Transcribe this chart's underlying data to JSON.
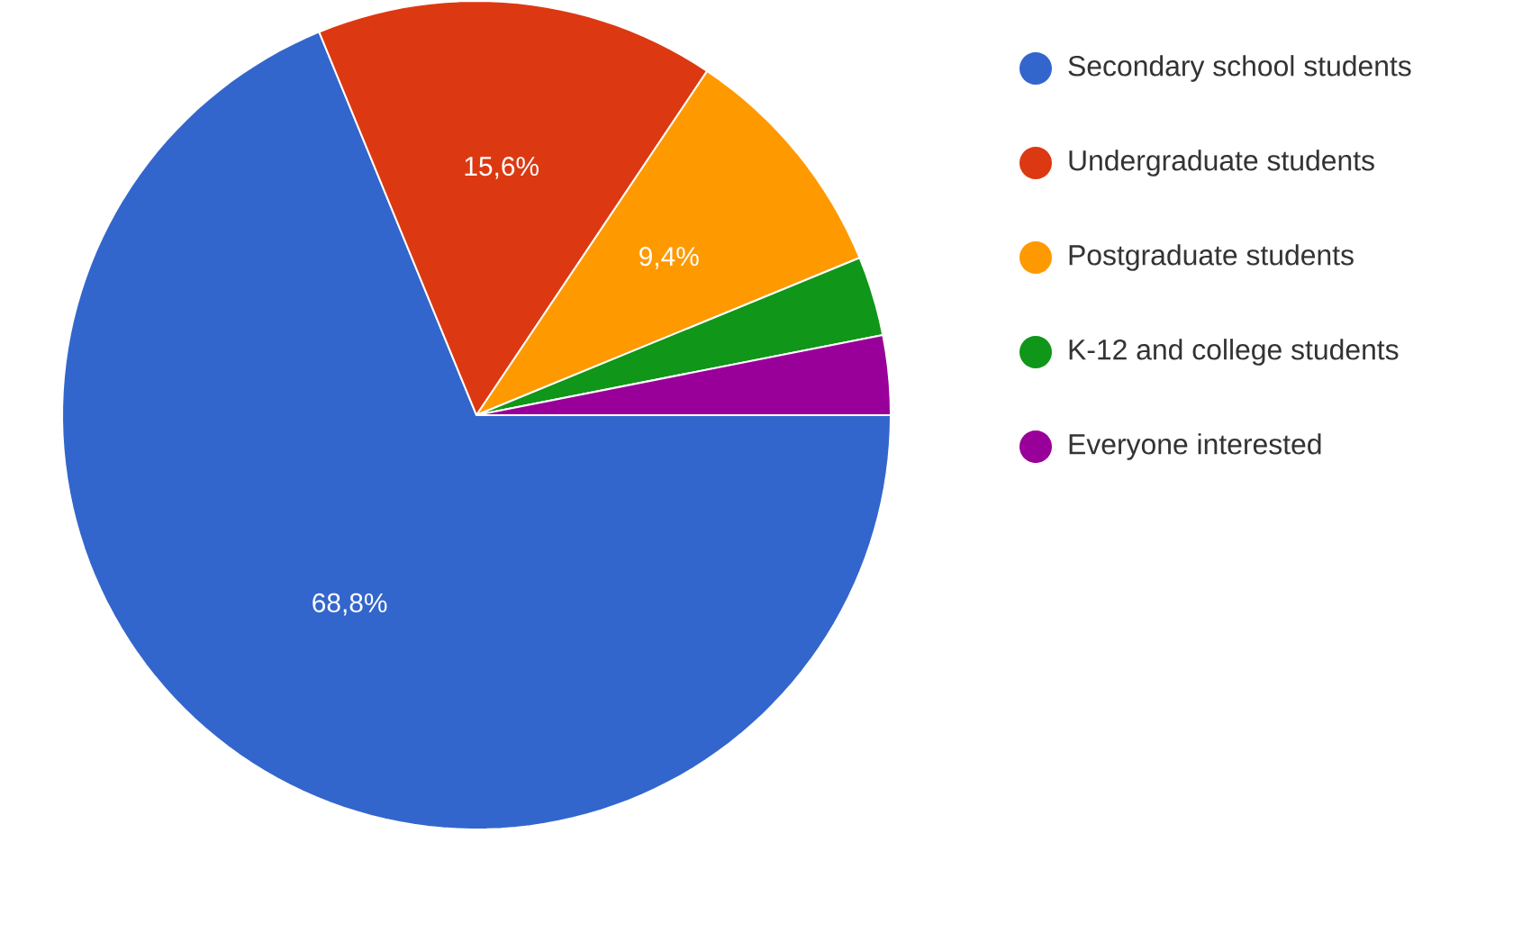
{
  "chart_data": {
    "type": "pie",
    "categories": [
      "Secondary school students",
      "Undergraduate students",
      "Postgraduate students",
      "K-12 and college students",
      "Everyone interested"
    ],
    "values": [
      68.8,
      15.6,
      9.4,
      3.1,
      3.1
    ],
    "value_labels": [
      "68,8%",
      "15,6%",
      "9,4%",
      null,
      null
    ],
    "colors": [
      "#3366cc",
      "#dc3912",
      "#ff9900",
      "#109618",
      "#990099"
    ],
    "legend": "top right"
  }
}
